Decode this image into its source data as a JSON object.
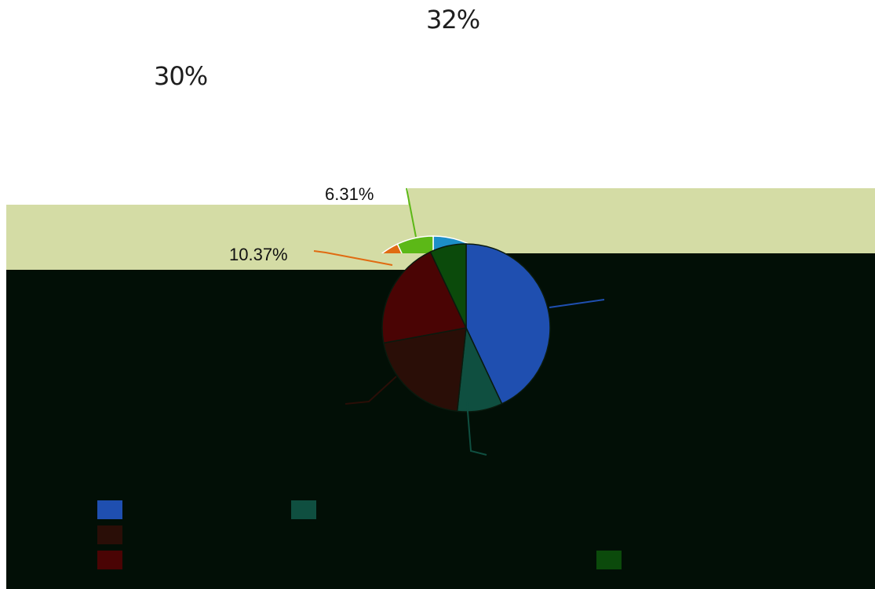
{
  "top_labels": {
    "first": "32%",
    "second": "30%"
  },
  "colors": {
    "olive_band": "#d4dca5",
    "dark_band": "#020f06",
    "slice_blue": "#1f4fb0",
    "slice_teal": "#0f4f40",
    "slice_brown": "#2a0e07",
    "slice_maroon": "#4a0404",
    "slice_green": "#0b4a0b",
    "slice_light_blue": "#1d8fc8",
    "slice_orange": "#e06b12",
    "slice_lime": "#5cb817"
  },
  "chart_data": {
    "type": "pie",
    "labels_visible": [
      "6.31%",
      "10.37%"
    ],
    "slices": [
      {
        "color": "#1f4fb0",
        "value": 43.0
      },
      {
        "color": "#0f4f40",
        "value": 8.7
      },
      {
        "color": "#2a0e07",
        "value": 20.4
      },
      {
        "color": "#4a0404",
        "value": 20.9
      },
      {
        "color": "#0b4a0b",
        "value": 7.0
      }
    ],
    "legend_swatches": [
      {
        "color": "#1f4fb0"
      },
      {
        "color": "#0f4f40"
      },
      {
        "color": "#2a0e07"
      },
      {
        "color": "#4a0404"
      },
      {
        "color": "#0b4a0b"
      }
    ]
  }
}
